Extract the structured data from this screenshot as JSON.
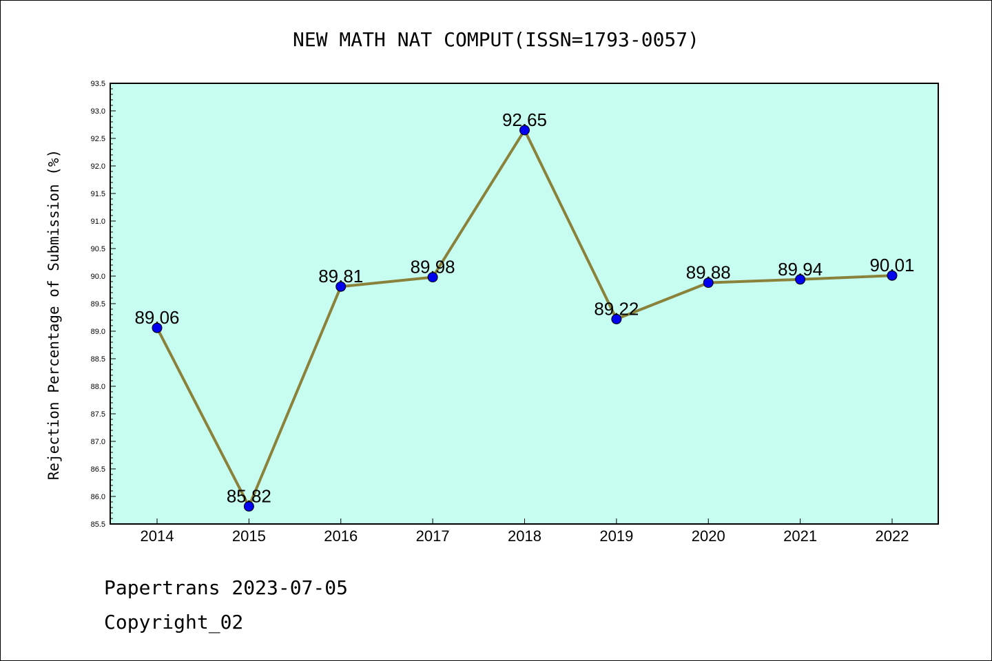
{
  "chart_data": {
    "type": "line",
    "title": "NEW MATH NAT COMPUT(ISSN=1793-0057)",
    "ylabel": "Rejection Percentage of Submission (%)",
    "xlabel": "",
    "ylim": [
      85.5,
      93.5
    ],
    "ytick_step": 0.5,
    "ytick_labels": [
      "85.5",
      "86.0",
      "86.5",
      "87.0",
      "87.5",
      "88.0",
      "88.5",
      "89.0",
      "89.5",
      "90.0",
      "90.5",
      "91.0",
      "91.5",
      "92.0",
      "92.5",
      "93.0",
      "93.5"
    ],
    "categories": [
      "2014",
      "2015",
      "2016",
      "2017",
      "2018",
      "2019",
      "2020",
      "2021",
      "2022"
    ],
    "series": [
      {
        "values": [
          89.06,
          85.82,
          89.81,
          89.98,
          92.65,
          89.22,
          89.88,
          89.94,
          90.01
        ],
        "labels": [
          "89.06",
          "85.82",
          "89.81",
          "89.98",
          "92.65",
          "89.22",
          "89.88",
          "89.94",
          "90.01"
        ]
      }
    ],
    "grid": false,
    "colors": {
      "plot_background": "#c7fdf0",
      "line": "#8a823a",
      "marker": "#0000ee"
    }
  },
  "footer": {
    "date_text": "Papertrans 2023-07-05",
    "copyright_text": "Copyright_02"
  }
}
